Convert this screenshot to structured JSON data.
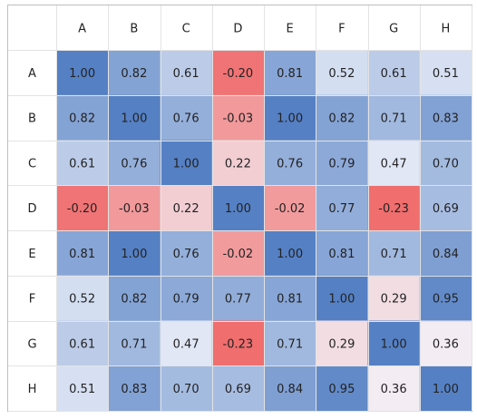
{
  "chart_data": {
    "type": "heatmap",
    "title": "",
    "row_labels": [
      "A",
      "B",
      "C",
      "D",
      "E",
      "F",
      "G",
      "H"
    ],
    "col_labels": [
      "A",
      "B",
      "C",
      "D",
      "E",
      "F",
      "G",
      "H"
    ],
    "values": [
      [
        1.0,
        0.82,
        0.61,
        -0.2,
        0.81,
        0.52,
        0.61,
        0.51
      ],
      [
        0.82,
        1.0,
        0.76,
        -0.03,
        1.0,
        0.82,
        0.71,
        0.83
      ],
      [
        0.61,
        0.76,
        1.0,
        0.22,
        0.76,
        0.79,
        0.47,
        0.7
      ],
      [
        -0.2,
        -0.03,
        0.22,
        1.0,
        -0.02,
        0.77,
        -0.23,
        0.69
      ],
      [
        0.81,
        1.0,
        0.76,
        -0.02,
        1.0,
        0.81,
        0.71,
        0.84
      ],
      [
        0.52,
        0.82,
        0.79,
        0.77,
        0.81,
        1.0,
        0.29,
        0.95
      ],
      [
        0.61,
        0.71,
        0.47,
        -0.23,
        0.71,
        0.29,
        1.0,
        0.36
      ],
      [
        0.51,
        0.83,
        0.7,
        0.69,
        0.84,
        0.95,
        0.36,
        1.0
      ]
    ],
    "labels": [
      [
        "1.00",
        "0.82",
        "0.61",
        "-0.20",
        "0.81",
        "0.52",
        "0.61",
        "0.51"
      ],
      [
        "0.82",
        "1.00",
        "0.76",
        "-0.03",
        "1.00",
        "0.82",
        "0.71",
        "0.83"
      ],
      [
        "0.61",
        "0.76",
        "1.00",
        "0.22",
        "0.76",
        "0.79",
        "0.47",
        "0.70"
      ],
      [
        "-0.20",
        "-0.03",
        "0.22",
        "1.00",
        "-0.02",
        "0.77",
        "-0.23",
        "0.69"
      ],
      [
        "0.81",
        "1.00",
        "0.76",
        "-0.02",
        "1.00",
        "0.81",
        "0.71",
        "0.84"
      ],
      [
        "0.52",
        "0.82",
        "0.79",
        "0.77",
        "0.81",
        "1.00",
        "0.29",
        "0.95"
      ],
      [
        "0.61",
        "0.71",
        "0.47",
        "-0.23",
        "0.71",
        "0.29",
        "1.00",
        "0.36"
      ],
      [
        "0.51",
        "0.83",
        "0.70",
        "0.69",
        "0.84",
        "0.95",
        "0.36",
        "1.00"
      ]
    ],
    "colors": {
      "high": "#5580C4",
      "mid": "#F3F5FC",
      "low": "#F06E6E",
      "border": "#BFBFBF",
      "gridline": "#E3E3E3"
    }
  }
}
